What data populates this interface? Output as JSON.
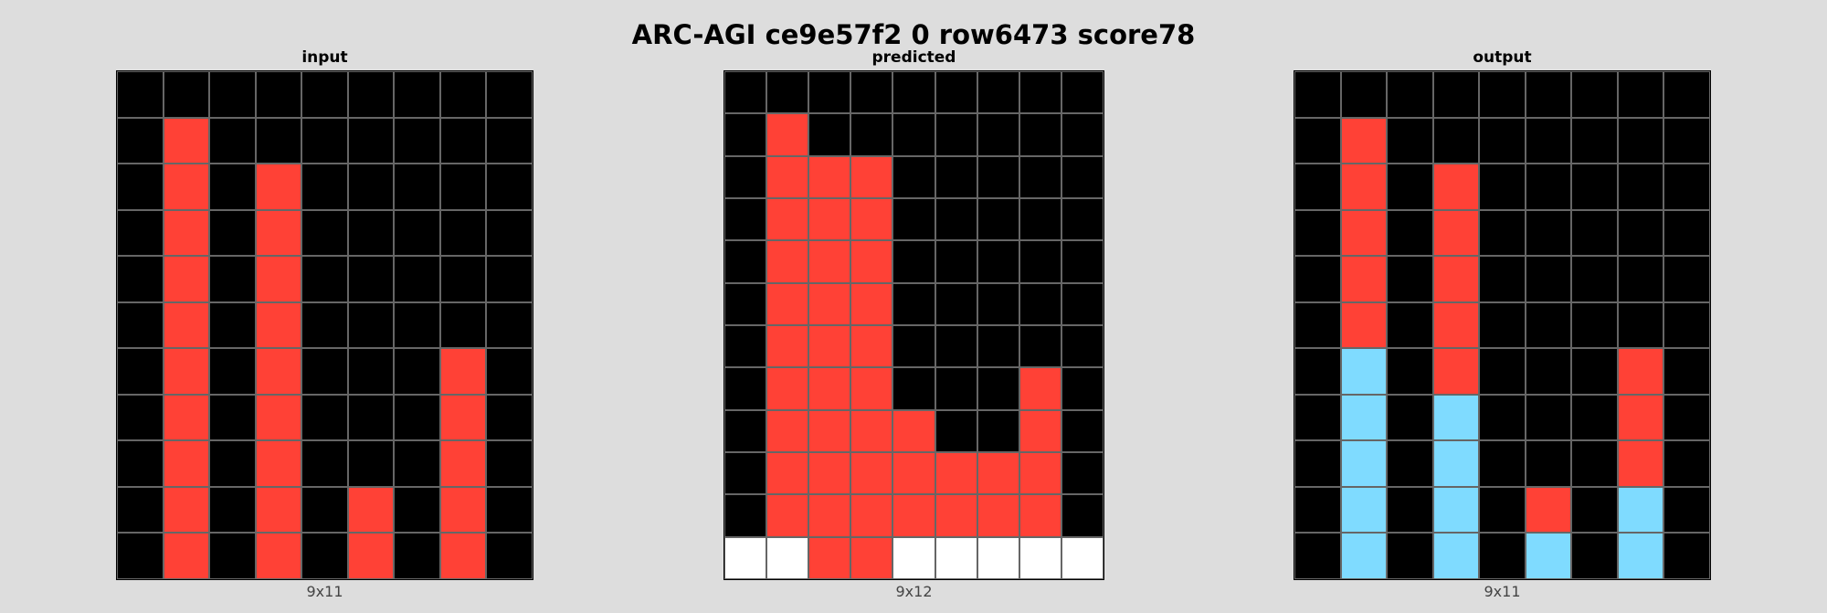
{
  "title": "ARC-AGI ce9e57f2 0 row6473 score78",
  "colors": {
    "0": "#000000",
    "2": "#ff4136",
    "8": "#7fdbff",
    "w": "#ffffff"
  },
  "panels": [
    {
      "label": "input",
      "dims": "9x11",
      "grid": [
        [
          0,
          0,
          0,
          0,
          0,
          0,
          0,
          0,
          0
        ],
        [
          0,
          2,
          0,
          0,
          0,
          0,
          0,
          0,
          0
        ],
        [
          0,
          2,
          0,
          2,
          0,
          0,
          0,
          0,
          0
        ],
        [
          0,
          2,
          0,
          2,
          0,
          0,
          0,
          0,
          0
        ],
        [
          0,
          2,
          0,
          2,
          0,
          0,
          0,
          0,
          0
        ],
        [
          0,
          2,
          0,
          2,
          0,
          0,
          0,
          0,
          0
        ],
        [
          0,
          2,
          0,
          2,
          0,
          0,
          0,
          2,
          0
        ],
        [
          0,
          2,
          0,
          2,
          0,
          0,
          0,
          2,
          0
        ],
        [
          0,
          2,
          0,
          2,
          0,
          0,
          0,
          2,
          0
        ],
        [
          0,
          2,
          0,
          2,
          0,
          2,
          0,
          2,
          0
        ],
        [
          0,
          2,
          0,
          2,
          0,
          2,
          0,
          2,
          0
        ]
      ]
    },
    {
      "label": "predicted",
      "dims": "9x12",
      "grid": [
        [
          0,
          0,
          0,
          0,
          0,
          0,
          0,
          0,
          0
        ],
        [
          0,
          2,
          0,
          0,
          0,
          0,
          0,
          0,
          0
        ],
        [
          0,
          2,
          2,
          2,
          0,
          0,
          0,
          0,
          0
        ],
        [
          0,
          2,
          2,
          2,
          0,
          0,
          0,
          0,
          0
        ],
        [
          0,
          2,
          2,
          2,
          0,
          0,
          0,
          0,
          0
        ],
        [
          0,
          2,
          2,
          2,
          0,
          0,
          0,
          0,
          0
        ],
        [
          0,
          2,
          2,
          2,
          0,
          0,
          0,
          0,
          0
        ],
        [
          0,
          2,
          2,
          2,
          0,
          0,
          0,
          2,
          0
        ],
        [
          0,
          2,
          2,
          2,
          2,
          0,
          0,
          2,
          0
        ],
        [
          0,
          2,
          2,
          2,
          2,
          2,
          2,
          2,
          0
        ],
        [
          0,
          2,
          2,
          2,
          2,
          2,
          2,
          2,
          0
        ],
        [
          "w",
          "w",
          2,
          2,
          "w",
          "w",
          "w",
          "w",
          "w"
        ]
      ]
    },
    {
      "label": "output",
      "dims": "9x11",
      "grid": [
        [
          0,
          0,
          0,
          0,
          0,
          0,
          0,
          0,
          0
        ],
        [
          0,
          2,
          0,
          0,
          0,
          0,
          0,
          0,
          0
        ],
        [
          0,
          2,
          0,
          2,
          0,
          0,
          0,
          0,
          0
        ],
        [
          0,
          2,
          0,
          2,
          0,
          0,
          0,
          0,
          0
        ],
        [
          0,
          2,
          0,
          2,
          0,
          0,
          0,
          0,
          0
        ],
        [
          0,
          2,
          0,
          2,
          0,
          0,
          0,
          0,
          0
        ],
        [
          0,
          8,
          0,
          2,
          0,
          0,
          0,
          2,
          0
        ],
        [
          0,
          8,
          0,
          8,
          0,
          0,
          0,
          2,
          0
        ],
        [
          0,
          8,
          0,
          8,
          0,
          0,
          0,
          2,
          0
        ],
        [
          0,
          8,
          0,
          8,
          0,
          2,
          0,
          8,
          0
        ],
        [
          0,
          8,
          0,
          8,
          0,
          8,
          0,
          8,
          0
        ]
      ]
    }
  ]
}
